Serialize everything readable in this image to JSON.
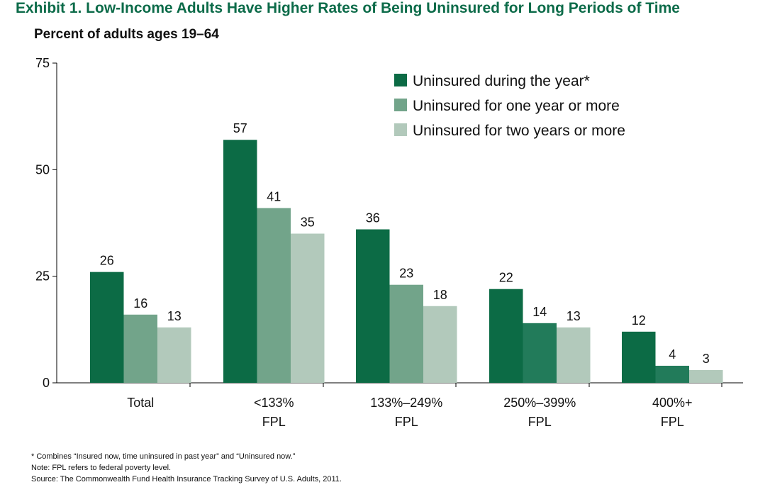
{
  "title": "Exhibit 1. Low-Income Adults Have Higher Rates of Being Uninsured for Long Periods of Time",
  "subtitle": "Percent of adults ages 19–64",
  "colors": {
    "series1": "#0c6b45",
    "series2": "#72a48a",
    "series3": "#b2c9bb",
    "series2_alt": "#227b5a",
    "axis": "#000000"
  },
  "chart_data": {
    "type": "bar",
    "categories": [
      [
        "Total"
      ],
      [
        "<133%",
        "FPL"
      ],
      [
        "133%–249%",
        "FPL"
      ],
      [
        "250%–399%",
        "FPL"
      ],
      [
        "400%+",
        "FPL"
      ]
    ],
    "series": [
      {
        "name": "Uninsured during the year*",
        "values": [
          26,
          57,
          36,
          22,
          12
        ]
      },
      {
        "name": "Uninsured for one year or more",
        "values": [
          16,
          41,
          23,
          14,
          4
        ]
      },
      {
        "name": "Uninsured for two years or more",
        "values": [
          13,
          35,
          18,
          13,
          3
        ]
      }
    ],
    "ylim": [
      0,
      75
    ],
    "yticks": [
      0,
      25,
      50,
      75
    ],
    "xlabel": "",
    "ylabel": "",
    "legend": "top-right",
    "grid": false
  },
  "notes": [
    "* Combines “Insured now, time uninsured in past year” and “Uninsured now.”",
    "Note: FPL refers to federal poverty level.",
    "Source: The Commonwealth Fund Health Insurance Tracking Survey of U.S. Adults, 2011."
  ]
}
